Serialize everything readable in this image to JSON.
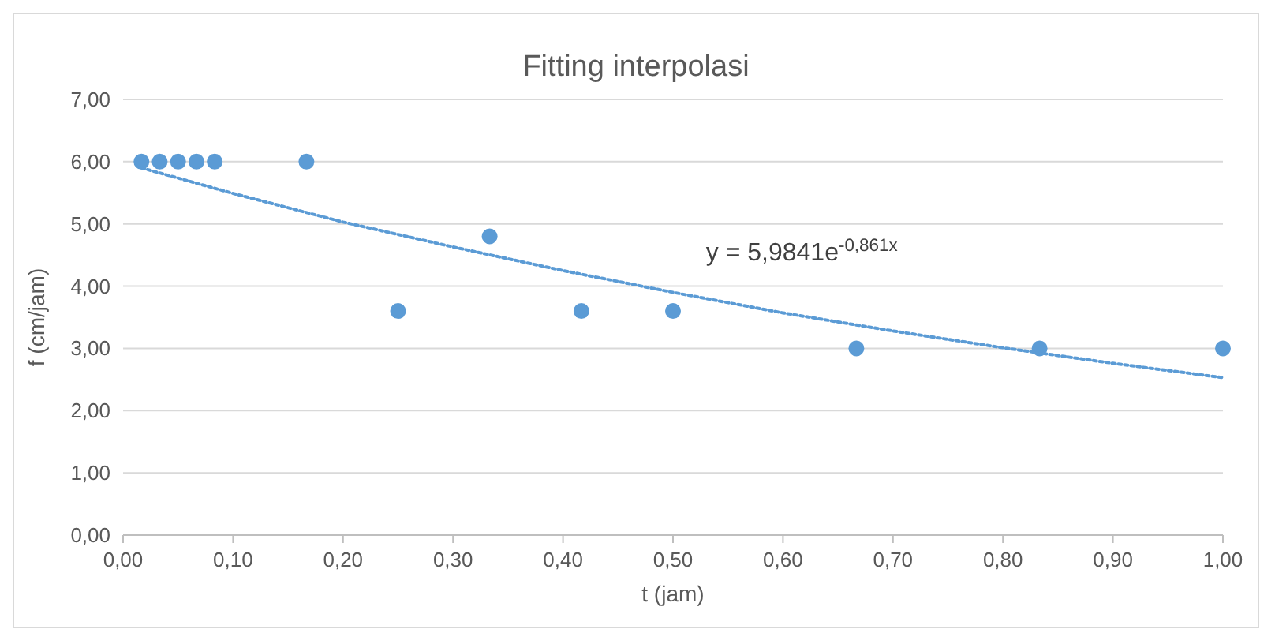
{
  "chart_data": {
    "type": "scatter",
    "title": "Fitting interpolasi",
    "xlabel": "t (jam)",
    "ylabel": "f (cm/jam)",
    "x": [
      0.0167,
      0.0333,
      0.05,
      0.0667,
      0.0833,
      0.1667,
      0.25,
      0.3333,
      0.4167,
      0.5,
      0.6667,
      0.8333,
      1.0
    ],
    "series": [
      {
        "color": "#5b9bd5",
        "marker": "circle",
        "values": [
          6,
          6,
          6,
          6,
          6,
          6,
          3.6,
          4.8,
          3.6,
          3.6,
          3,
          3,
          3
        ]
      },
      {
        "type": "line",
        "color": "#5b9bd5",
        "line_style": "dotted",
        "marker": "none",
        "x": [
          0.0167,
          0.1,
          0.2,
          0.3,
          0.4,
          0.5,
          0.6,
          0.7,
          0.8,
          0.9,
          1.0
        ],
        "values": [
          5.9,
          5.49,
          5.03,
          4.63,
          4.25,
          3.9,
          3.57,
          3.28,
          3.01,
          2.76,
          2.53
        ]
      }
    ],
    "annotations": [
      "y = 5,9841e$^{-0,861x}$"
    ],
    "xlim": [
      0,
      1
    ],
    "ylim": [
      0,
      7
    ],
    "xticks": [
      {
        "value": 0,
        "label": "0,00"
      },
      {
        "value": 0.1,
        "label": "0,10"
      },
      {
        "value": 0.2,
        "label": "0,20"
      },
      {
        "value": 0.3,
        "label": "0,30"
      },
      {
        "value": 0.4,
        "label": "0,40"
      },
      {
        "value": 0.5,
        "label": "0,50"
      },
      {
        "value": 0.6,
        "label": "0,60"
      },
      {
        "value": 0.7,
        "label": "0,70"
      },
      {
        "value": 0.8,
        "label": "0,80"
      },
      {
        "value": 0.9,
        "label": "0,90"
      },
      {
        "value": 1,
        "label": "1,00"
      }
    ],
    "yticks": [
      {
        "value": 0,
        "label": "0,00"
      },
      {
        "value": 1,
        "label": "1,00"
      },
      {
        "value": 2,
        "label": "2,00"
      },
      {
        "value": 3,
        "label": "3,00"
      },
      {
        "value": 4,
        "label": "4,00"
      },
      {
        "value": 5,
        "label": "5,00"
      },
      {
        "value": 6,
        "label": "6,00"
      },
      {
        "value": 7,
        "label": "7,00"
      }
    ],
    "grid": "y"
  }
}
